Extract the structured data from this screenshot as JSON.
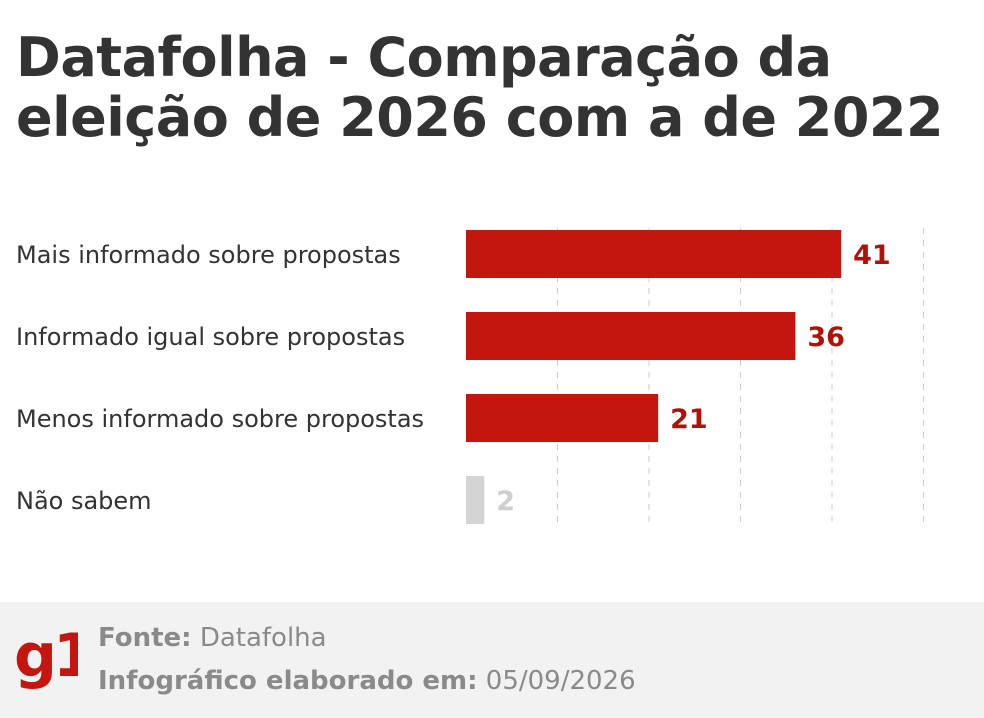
{
  "title": "Datafolha - Comparação da eleição de 2026 com a de 2022",
  "chart_data": {
    "type": "bar",
    "orientation": "horizontal",
    "title": "Datafolha - Comparação da eleição de 2026 com a de 2022",
    "categories": [
      "Mais informado sobre propostas",
      "Informado igual sobre propostas",
      "Menos informado sobre propostas",
      "Não sabem"
    ],
    "values": [
      41,
      36,
      21,
      2
    ],
    "xlim": [
      0,
      50
    ],
    "grid": true,
    "bar_colors": [
      "#c4160e",
      "#c4160e",
      "#c4160e",
      "#d4d4d4"
    ],
    "label_colors": [
      "#b01208",
      "#b01208",
      "#b01208",
      "#cfcfcf"
    ]
  },
  "footer": {
    "logo": "g1",
    "source_label": "Fonte:",
    "source_value": "Datafolha",
    "date_label": "Infográfico elaborado em:",
    "date_value": "05/09/2026"
  },
  "colors": {
    "accent": "#c4160e",
    "title": "#333333",
    "footer_bg": "#f2f2f2",
    "footer_text": "#8a8a8a"
  }
}
